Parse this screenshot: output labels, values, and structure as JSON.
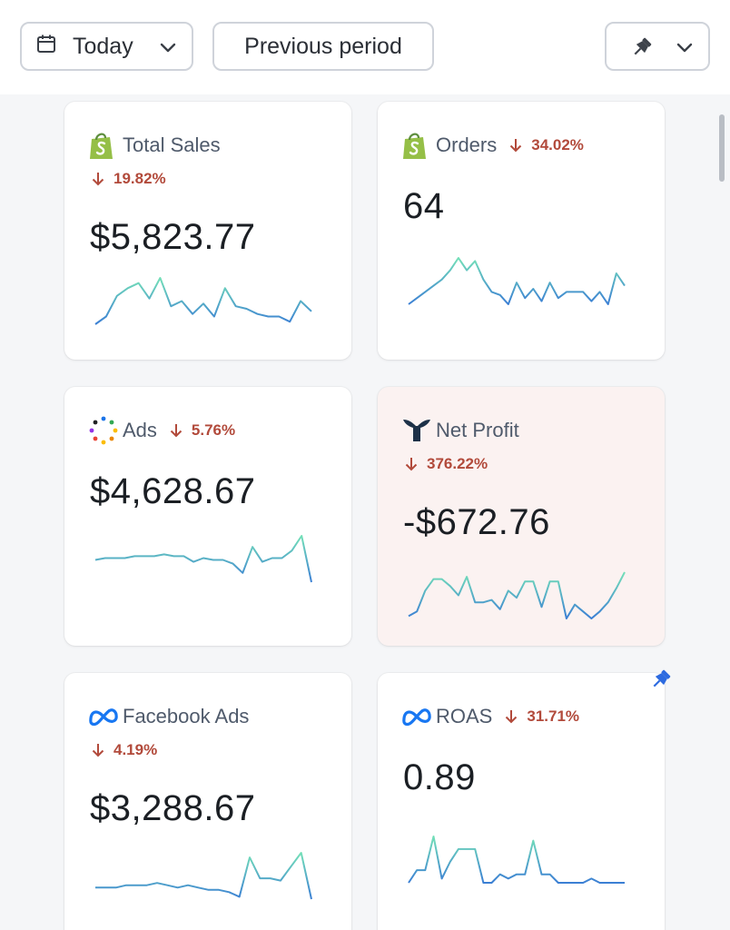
{
  "toolbar": {
    "date_range_label": "Today",
    "comparison_label": "Previous period",
    "icons": {
      "calendar": "calendar-icon",
      "pin": "pin-icon",
      "chevron": "chevron-down-icon"
    }
  },
  "colors": {
    "negative": "#b24a3b",
    "spark_start": "#3b7fd4",
    "spark_end": "#74e0b8",
    "highlight_bg": "#fbf2f1",
    "pin": "#2d6be0"
  },
  "cards": [
    {
      "title": "Total Sales",
      "icon": "shopify-icon",
      "change": "19.82%",
      "direction": "down",
      "value": "$5,823.77",
      "sparkline": [
        20,
        17,
        9,
        6,
        4,
        10,
        2,
        13,
        11,
        16,
        12,
        17,
        6,
        13,
        14,
        16,
        17,
        17,
        19,
        11,
        15
      ]
    },
    {
      "title": "Orders",
      "icon": "shopify-icon",
      "change": "34.02%",
      "direction": "down",
      "value": "64",
      "sparkline": [
        15,
        13,
        11,
        9,
        7,
        4,
        0,
        4,
        1,
        7,
        11,
        12,
        15,
        8,
        13,
        10,
        14,
        8,
        13,
        11,
        11,
        11,
        14,
        11,
        15,
        5,
        9
      ]
    },
    {
      "title": "Ads",
      "icon": "google-ads-icon",
      "change": "5.76%",
      "direction": "down",
      "value": "$4,628.67",
      "sparkline": [
        21,
        20,
        20,
        20,
        19,
        19,
        19,
        18,
        19,
        19,
        22,
        20,
        21,
        21,
        23,
        28,
        14,
        22,
        20,
        20,
        16,
        8,
        33
      ]
    },
    {
      "title": "Net Profit",
      "icon": "triple-whale-icon",
      "change": "376.22%",
      "direction": "down",
      "value": "-$672.76",
      "sparkline": [
        27,
        25,
        16,
        11,
        11,
        14,
        18,
        10,
        21,
        21,
        20,
        24,
        16,
        19,
        12,
        12,
        23,
        12,
        12,
        28,
        22,
        25,
        28,
        25,
        21,
        15,
        8
      ]
    },
    {
      "title": "Facebook Ads",
      "icon": "meta-icon",
      "change": "4.19%",
      "direction": "down",
      "value": "$3,288.67",
      "sparkline": [
        22,
        22,
        22,
        21,
        21,
        21,
        20,
        21,
        22,
        21,
        22,
        23,
        23,
        24,
        26,
        9,
        18,
        18,
        19,
        13,
        7,
        27
      ]
    },
    {
      "title": "ROAS",
      "icon": "meta-icon",
      "change": "31.71%",
      "direction": "down",
      "value": "0.89",
      "sparkline": [
        20,
        17,
        17,
        9,
        19,
        15,
        12,
        12,
        12,
        20,
        20,
        18,
        19,
        18,
        18,
        10,
        18,
        18,
        20,
        20,
        20,
        20,
        19,
        20,
        20,
        20,
        20
      ]
    }
  ]
}
